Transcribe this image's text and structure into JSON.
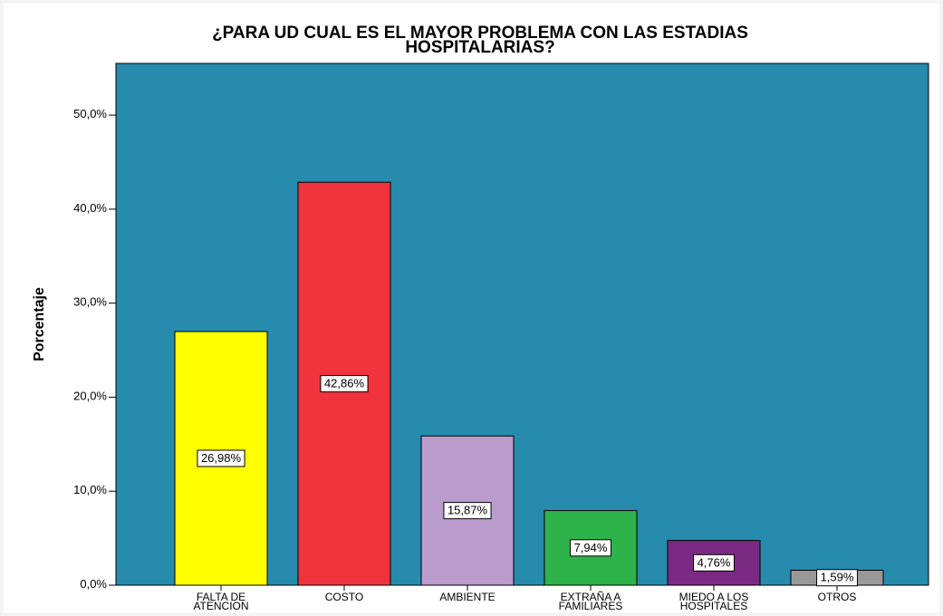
{
  "chart_data": {
    "type": "bar",
    "title": "¿PARA UD CUAL ES EL MAYOR PROBLEMA CON LAS ESTADIAS\nHOSPITALARIAS?",
    "y_label": "Porcentaje",
    "categories": [
      "FALTA DE\nATENCION",
      "COSTO",
      "AMBIENTE",
      "EXTRAÑA A\nFAMILIARES",
      "MIEDO A LOS\nHOSPITALES",
      "OTROS"
    ],
    "values": [
      26.98,
      42.86,
      15.87,
      7.94,
      4.76,
      1.59
    ],
    "value_labels": [
      "26,98%",
      "42,86%",
      "15,87%",
      "7,94%",
      "4,76%",
      "1,59%"
    ],
    "colors": [
      "#ffff00",
      "#f0333c",
      "#b99ccb",
      "#2eb34b",
      "#7a2a82",
      "#999999"
    ],
    "ylim": [
      0,
      55.5
    ],
    "yticks": [
      {
        "value": 0,
        "label": "0,0%"
      },
      {
        "value": 10,
        "label": "10,0%"
      },
      {
        "value": 20,
        "label": "20,0%"
      },
      {
        "value": 30,
        "label": "30,0%"
      },
      {
        "value": 40,
        "label": "40,0%"
      },
      {
        "value": 50,
        "label": "50,0%"
      }
    ],
    "background": "#268bac"
  }
}
